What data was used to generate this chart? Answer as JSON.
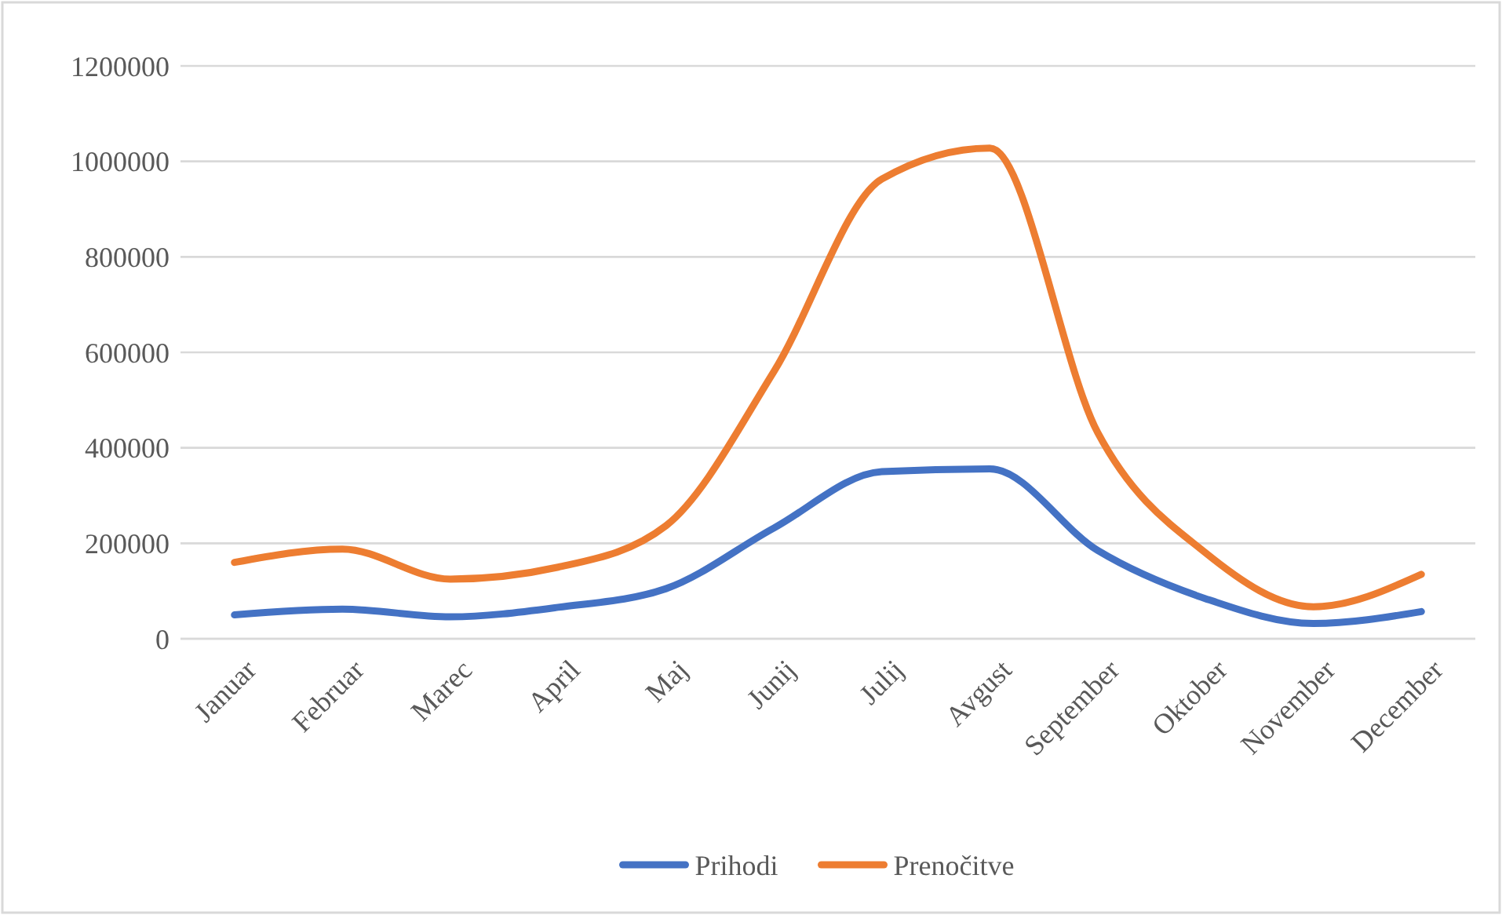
{
  "chart_data": {
    "type": "line",
    "categories": [
      "Januar",
      "Februar",
      "Marec",
      "April",
      "Maj",
      "Junij",
      "Julij",
      "Avgust",
      "September",
      "Oktober",
      "November",
      "December"
    ],
    "series": [
      {
        "name": "Prihodi",
        "color": "#4472c4",
        "values": [
          50000,
          62000,
          46000,
          66000,
          105000,
          232000,
          350000,
          356000,
          185000,
          84000,
          32000,
          57000
        ]
      },
      {
        "name": "Prenočitve",
        "color": "#ed7d31",
        "values": [
          160000,
          188000,
          125000,
          150000,
          237000,
          560000,
          963000,
          1028000,
          432000,
          180000,
          67000,
          135000
        ]
      }
    ],
    "ylim": [
      0,
      1200000
    ],
    "yticks": [
      0,
      200000,
      400000,
      600000,
      800000,
      1000000,
      1200000
    ],
    "grid": "y",
    "legend": "bottom",
    "marker": "none",
    "line_style": "solid"
  }
}
